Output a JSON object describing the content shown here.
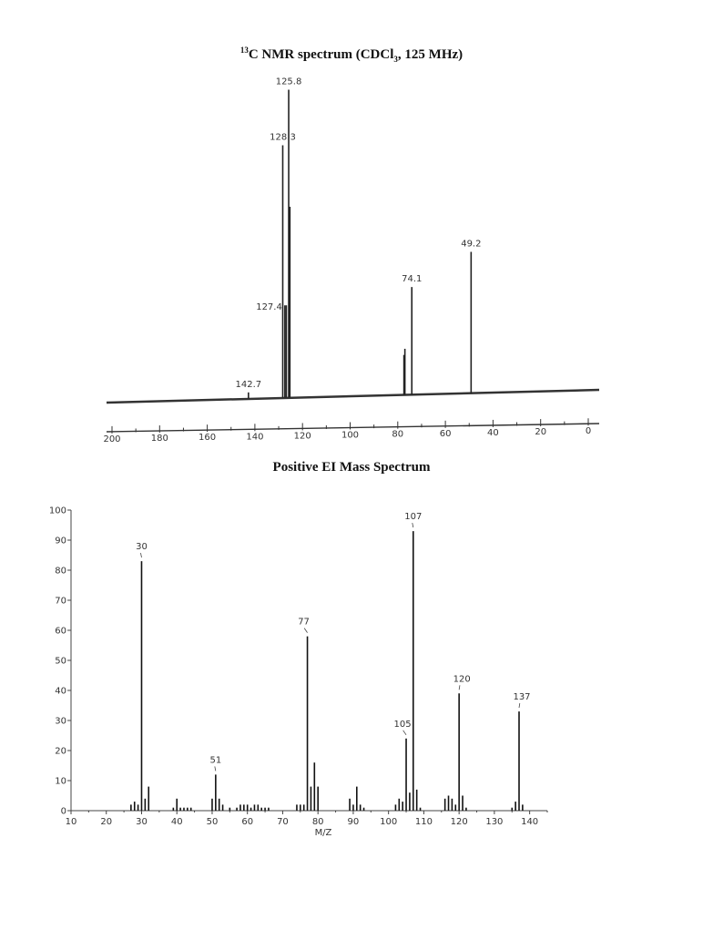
{
  "charts": {
    "nmr": {
      "title_sup": "13",
      "title_pre": "C NMR spectrum (CDCl",
      "title_sub": "3",
      "title_post": ", 125 MHz)"
    },
    "ms": {
      "title": "Positive EI Mass Spectrum"
    }
  },
  "chart_data": [
    {
      "type": "bar",
      "kind": "nmr-spectrum",
      "title": "13C NMR spectrum (CDCl3, 125 MHz)",
      "xlabel": "",
      "ylabel": "",
      "xlim": [
        200,
        0
      ],
      "x_ticks": [
        200,
        180,
        160,
        140,
        120,
        100,
        80,
        60,
        40,
        20,
        0
      ],
      "grid": false,
      "peaks": [
        {
          "x": 142.7,
          "h": 0.02,
          "label": "142.7"
        },
        {
          "x": 128.3,
          "h": 0.82,
          "label": "128.3"
        },
        {
          "x": 127.4,
          "h": 0.3,
          "label": "127.4"
        },
        {
          "x": 126.8,
          "h": 0.3,
          "label": ""
        },
        {
          "x": 125.8,
          "h": 1.0,
          "label": "125.8"
        },
        {
          "x": 125.3,
          "h": 0.62,
          "label": ""
        },
        {
          "x": 77.4,
          "h": 0.13,
          "label": ""
        },
        {
          "x": 77.0,
          "h": 0.15,
          "label": ""
        },
        {
          "x": 74.1,
          "h": 0.35,
          "label": "74.1"
        },
        {
          "x": 49.2,
          "h": 0.46,
          "label": "49.2"
        }
      ]
    },
    {
      "type": "bar",
      "kind": "mass-spectrum",
      "title": "Positive EI Mass Spectrum",
      "xlabel": "M/Z",
      "ylabel": "",
      "xlim": [
        10,
        145
      ],
      "ylim": [
        0,
        100
      ],
      "x_ticks": [
        10,
        20,
        30,
        40,
        50,
        60,
        70,
        80,
        90,
        100,
        110,
        120,
        130,
        140
      ],
      "y_ticks": [
        0,
        10,
        20,
        30,
        40,
        50,
        60,
        70,
        80,
        90,
        100
      ],
      "grid": false,
      "peaks": [
        {
          "x": 27,
          "y": 2,
          "label": ""
        },
        {
          "x": 28,
          "y": 3,
          "label": ""
        },
        {
          "x": 29,
          "y": 2,
          "label": ""
        },
        {
          "x": 30,
          "y": 83,
          "label": "30"
        },
        {
          "x": 31,
          "y": 4,
          "label": ""
        },
        {
          "x": 32,
          "y": 8,
          "label": ""
        },
        {
          "x": 39,
          "y": 1,
          "label": ""
        },
        {
          "x": 40,
          "y": 4,
          "label": ""
        },
        {
          "x": 41,
          "y": 1,
          "label": ""
        },
        {
          "x": 42,
          "y": 1,
          "label": ""
        },
        {
          "x": 43,
          "y": 1,
          "label": ""
        },
        {
          "x": 44,
          "y": 1,
          "label": ""
        },
        {
          "x": 50,
          "y": 4,
          "label": ""
        },
        {
          "x": 51,
          "y": 12,
          "label": "51"
        },
        {
          "x": 52,
          "y": 4,
          "label": ""
        },
        {
          "x": 53,
          "y": 2,
          "label": ""
        },
        {
          "x": 55,
          "y": 1,
          "label": ""
        },
        {
          "x": 57,
          "y": 1,
          "label": ""
        },
        {
          "x": 58,
          "y": 2,
          "label": ""
        },
        {
          "x": 59,
          "y": 2,
          "label": ""
        },
        {
          "x": 60,
          "y": 2,
          "label": ""
        },
        {
          "x": 61,
          "y": 1,
          "label": ""
        },
        {
          "x": 62,
          "y": 2,
          "label": ""
        },
        {
          "x": 63,
          "y": 2,
          "label": ""
        },
        {
          "x": 64,
          "y": 1,
          "label": ""
        },
        {
          "x": 65,
          "y": 1,
          "label": ""
        },
        {
          "x": 66,
          "y": 1,
          "label": ""
        },
        {
          "x": 74,
          "y": 2,
          "label": ""
        },
        {
          "x": 75,
          "y": 2,
          "label": ""
        },
        {
          "x": 76,
          "y": 2,
          "label": ""
        },
        {
          "x": 77,
          "y": 58,
          "label": "77"
        },
        {
          "x": 78,
          "y": 8,
          "label": ""
        },
        {
          "x": 79,
          "y": 16,
          "label": ""
        },
        {
          "x": 80,
          "y": 8,
          "label": ""
        },
        {
          "x": 89,
          "y": 4,
          "label": ""
        },
        {
          "x": 90,
          "y": 2,
          "label": ""
        },
        {
          "x": 91,
          "y": 8,
          "label": ""
        },
        {
          "x": 92,
          "y": 2,
          "label": ""
        },
        {
          "x": 93,
          "y": 1,
          "label": ""
        },
        {
          "x": 102,
          "y": 2,
          "label": ""
        },
        {
          "x": 103,
          "y": 4,
          "label": ""
        },
        {
          "x": 104,
          "y": 3,
          "label": ""
        },
        {
          "x": 105,
          "y": 24,
          "label": "105"
        },
        {
          "x": 106,
          "y": 6,
          "label": ""
        },
        {
          "x": 107,
          "y": 93,
          "label": "107"
        },
        {
          "x": 108,
          "y": 7,
          "label": ""
        },
        {
          "x": 109,
          "y": 1,
          "label": ""
        },
        {
          "x": 116,
          "y": 4,
          "label": ""
        },
        {
          "x": 117,
          "y": 5,
          "label": ""
        },
        {
          "x": 118,
          "y": 4,
          "label": ""
        },
        {
          "x": 119,
          "y": 2,
          "label": ""
        },
        {
          "x": 120,
          "y": 39,
          "label": "120"
        },
        {
          "x": 121,
          "y": 5,
          "label": ""
        },
        {
          "x": 122,
          "y": 1,
          "label": ""
        },
        {
          "x": 135,
          "y": 1,
          "label": ""
        },
        {
          "x": 136,
          "y": 3,
          "label": ""
        },
        {
          "x": 137,
          "y": 33,
          "label": "137"
        },
        {
          "x": 138,
          "y": 2,
          "label": ""
        }
      ]
    }
  ]
}
